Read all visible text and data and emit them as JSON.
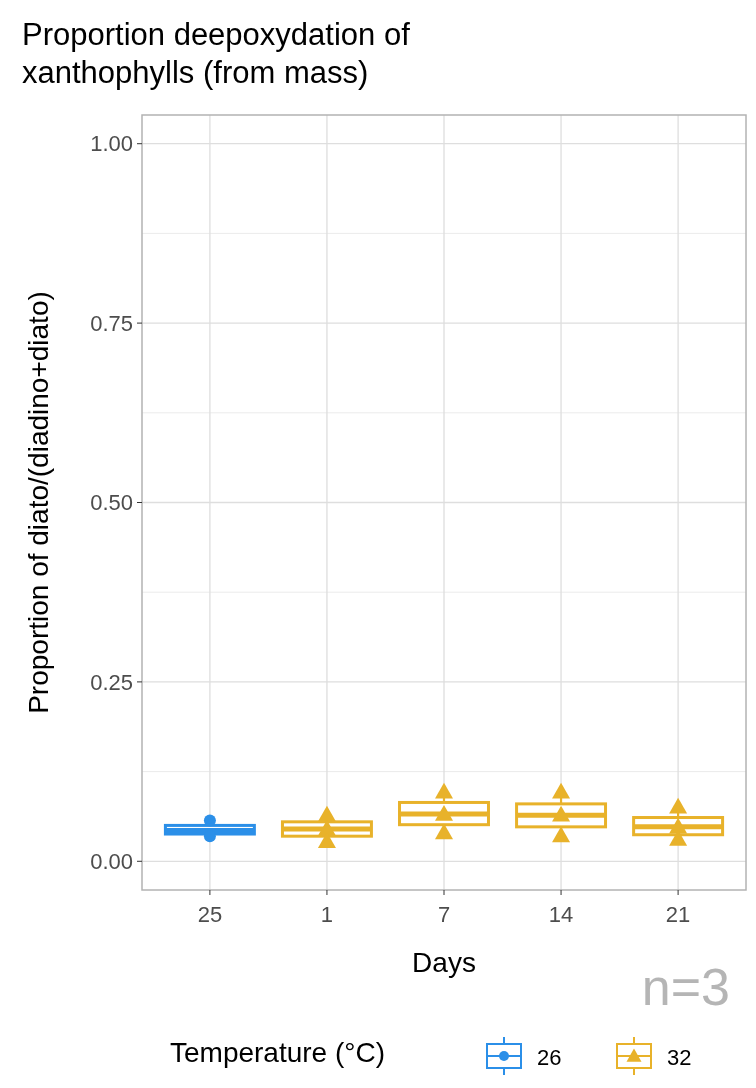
{
  "chart_data": {
    "type": "box",
    "title": "Proportion deepoxydation of xanthophylls (from mass)",
    "xlabel": "Days",
    "ylabel": "Proportion of diato/(diadino+diato)",
    "legend_title": "Temperature (°C)",
    "annotations": [
      "n=3"
    ],
    "categories": [
      "25",
      "1",
      "7",
      "14",
      "21"
    ],
    "ylim": [
      -0.04,
      1.04
    ],
    "yticks": [
      {
        "value": 0,
        "label": "0.00"
      },
      {
        "value": 0.25,
        "label": "0.25"
      },
      {
        "value": 0.5,
        "label": "0.50"
      },
      {
        "value": 0.75,
        "label": "0.75"
      },
      {
        "value": 1,
        "label": "1.00"
      }
    ],
    "grid": true,
    "legend": "bottom",
    "series": [
      {
        "name": "26",
        "color": "#2b8fe8",
        "marker": "circle",
        "boxes": [
          {
            "low": 0.035,
            "q1": 0.038,
            "median": 0.043,
            "q3": 0.05,
            "high": 0.057
          },
          null,
          null,
          null,
          null
        ]
      },
      {
        "name": "32",
        "color": "#e8b22a",
        "marker": "triangle",
        "boxes": [
          null,
          {
            "low": 0.028,
            "q1": 0.035,
            "median": 0.045,
            "q3": 0.055,
            "high": 0.065
          },
          {
            "low": 0.04,
            "q1": 0.051,
            "median": 0.066,
            "q3": 0.082,
            "high": 0.097
          },
          {
            "low": 0.036,
            "q1": 0.048,
            "median": 0.064,
            "q3": 0.08,
            "high": 0.097
          },
          {
            "low": 0.031,
            "q1": 0.037,
            "median": 0.048,
            "q3": 0.061,
            "high": 0.076
          }
        ]
      },
      {
        "type": "scatter",
        "color": "#2b8fe8",
        "marker": "circle",
        "x": [
          "25",
          "25"
        ],
        "values": [
          0.057,
          0.035
        ]
      },
      {
        "type": "scatter",
        "color": "#e8b22a",
        "marker": "triangle",
        "x": [
          "1",
          "1",
          "1",
          "7",
          "7",
          "7",
          "14",
          "14",
          "14",
          "21",
          "21",
          "21"
        ],
        "values": [
          0.065,
          0.045,
          0.028,
          0.097,
          0.066,
          0.04,
          0.097,
          0.065,
          0.036,
          0.076,
          0.048,
          0.031
        ]
      }
    ]
  }
}
